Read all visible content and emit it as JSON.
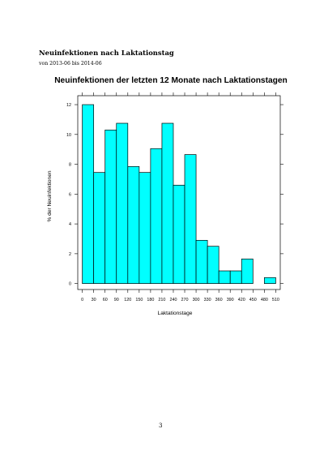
{
  "document": {
    "title": "Neuinfektionen nach Laktationstag",
    "subtitle": "von 2013-06 bis 2014-06",
    "page_number": "3"
  },
  "colors": {
    "bar_fill": "#00ffff",
    "bar_stroke": "#000000",
    "frame": "#000000"
  },
  "chart_data": {
    "type": "bar",
    "title": "Neuinfektionen der letzten 12 Monate nach Laktationstagen",
    "xlabel": "Laktationstage",
    "ylabel": "% der Neuinfektionen",
    "bin_width": 30,
    "bin_starts": [
      0,
      30,
      60,
      90,
      120,
      150,
      180,
      210,
      240,
      270,
      300,
      330,
      360,
      390,
      420,
      450,
      480
    ],
    "values": [
      12.0,
      7.45,
      10.3,
      10.75,
      7.85,
      7.45,
      9.05,
      10.75,
      6.6,
      8.65,
      2.9,
      2.5,
      0.85,
      0.85,
      1.65,
      0.0,
      0.4
    ],
    "xlim": [
      -12,
      522
    ],
    "ylim": [
      -0.4,
      12.6
    ],
    "x_ticks": [
      0,
      30,
      60,
      90,
      120,
      150,
      180,
      210,
      240,
      270,
      300,
      330,
      360,
      390,
      420,
      450,
      480,
      510
    ],
    "x_tick_labels": [
      "0",
      "30",
      "60",
      "90",
      "120",
      "150",
      "180",
      "210",
      "240",
      "270",
      "300",
      "330",
      "360",
      "390",
      "420",
      "450",
      "480",
      "510"
    ],
    "y_ticks": [
      0,
      2,
      4,
      6,
      8,
      10,
      12
    ],
    "y_tick_labels": [
      "0",
      "2",
      "4",
      "6",
      "8",
      "10",
      "12"
    ],
    "grid": false,
    "legend": "none"
  }
}
